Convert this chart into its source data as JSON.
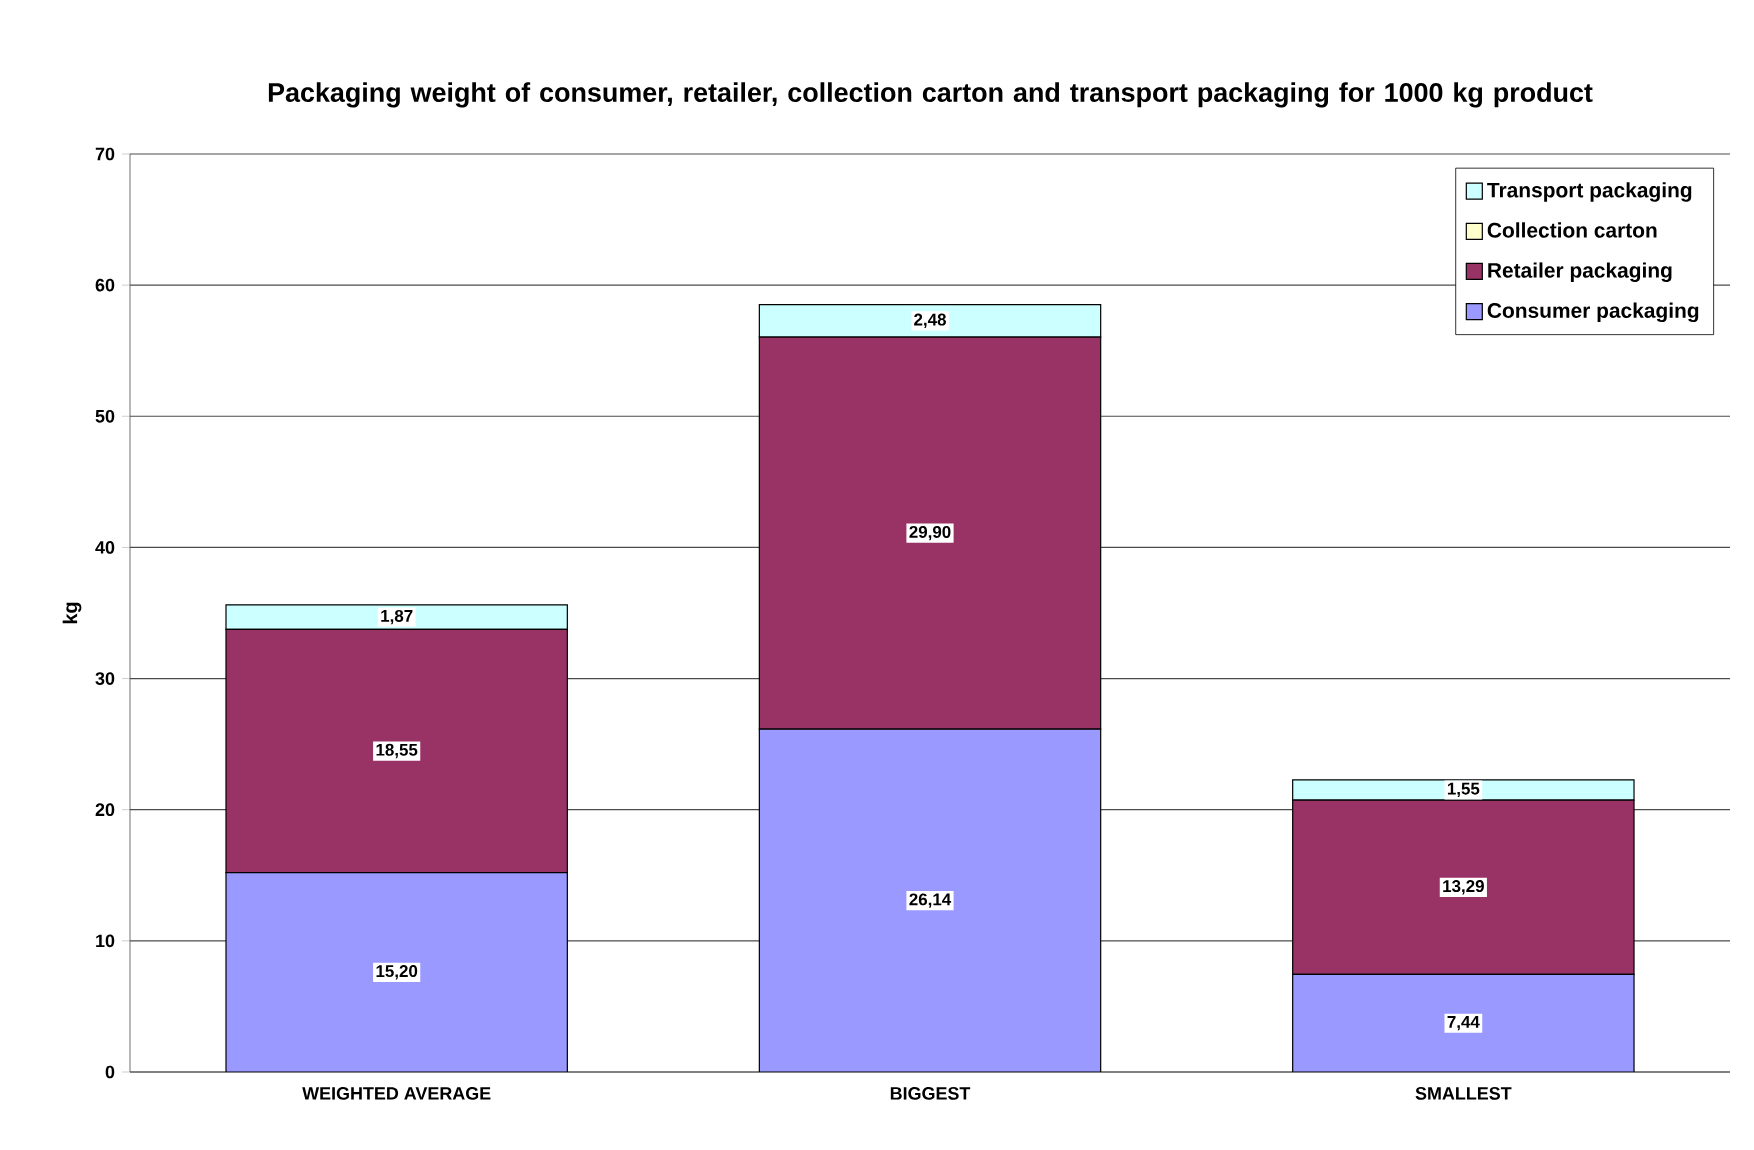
{
  "chart_data": {
    "type": "bar",
    "stacked": true,
    "title": "Packaging weight of consumer, retailer, collection carton and transport packaging for 1000 kg product",
    "ylabel": "kg",
    "categories": [
      "WEIGHTED AVERAGE",
      "BIGGEST",
      "SMALLEST"
    ],
    "series": [
      {
        "name": "Consumer packaging",
        "color": "#9999ff",
        "values": [
          15.2,
          26.14,
          7.44
        ],
        "value_labels": [
          "15,20",
          "26,14",
          "7,44"
        ]
      },
      {
        "name": "Retailer packaging",
        "color": "#993366",
        "values": [
          18.55,
          29.9,
          13.29
        ],
        "value_labels": [
          "18,55",
          "29,90",
          "13,29"
        ]
      },
      {
        "name": "Collection carton",
        "color": "#ffffcc",
        "values": [
          0,
          0,
          0
        ]
      },
      {
        "name": "Transport packaging",
        "color": "#ccffff",
        "values": [
          1.87,
          2.48,
          1.55
        ],
        "value_labels": [
          "1,87",
          "2,48",
          "1,55"
        ]
      }
    ],
    "ylim": [
      0,
      70
    ],
    "yticks": [
      0,
      10,
      20,
      30,
      40,
      50,
      60,
      70
    ],
    "grid": "y",
    "legend": "top right"
  }
}
